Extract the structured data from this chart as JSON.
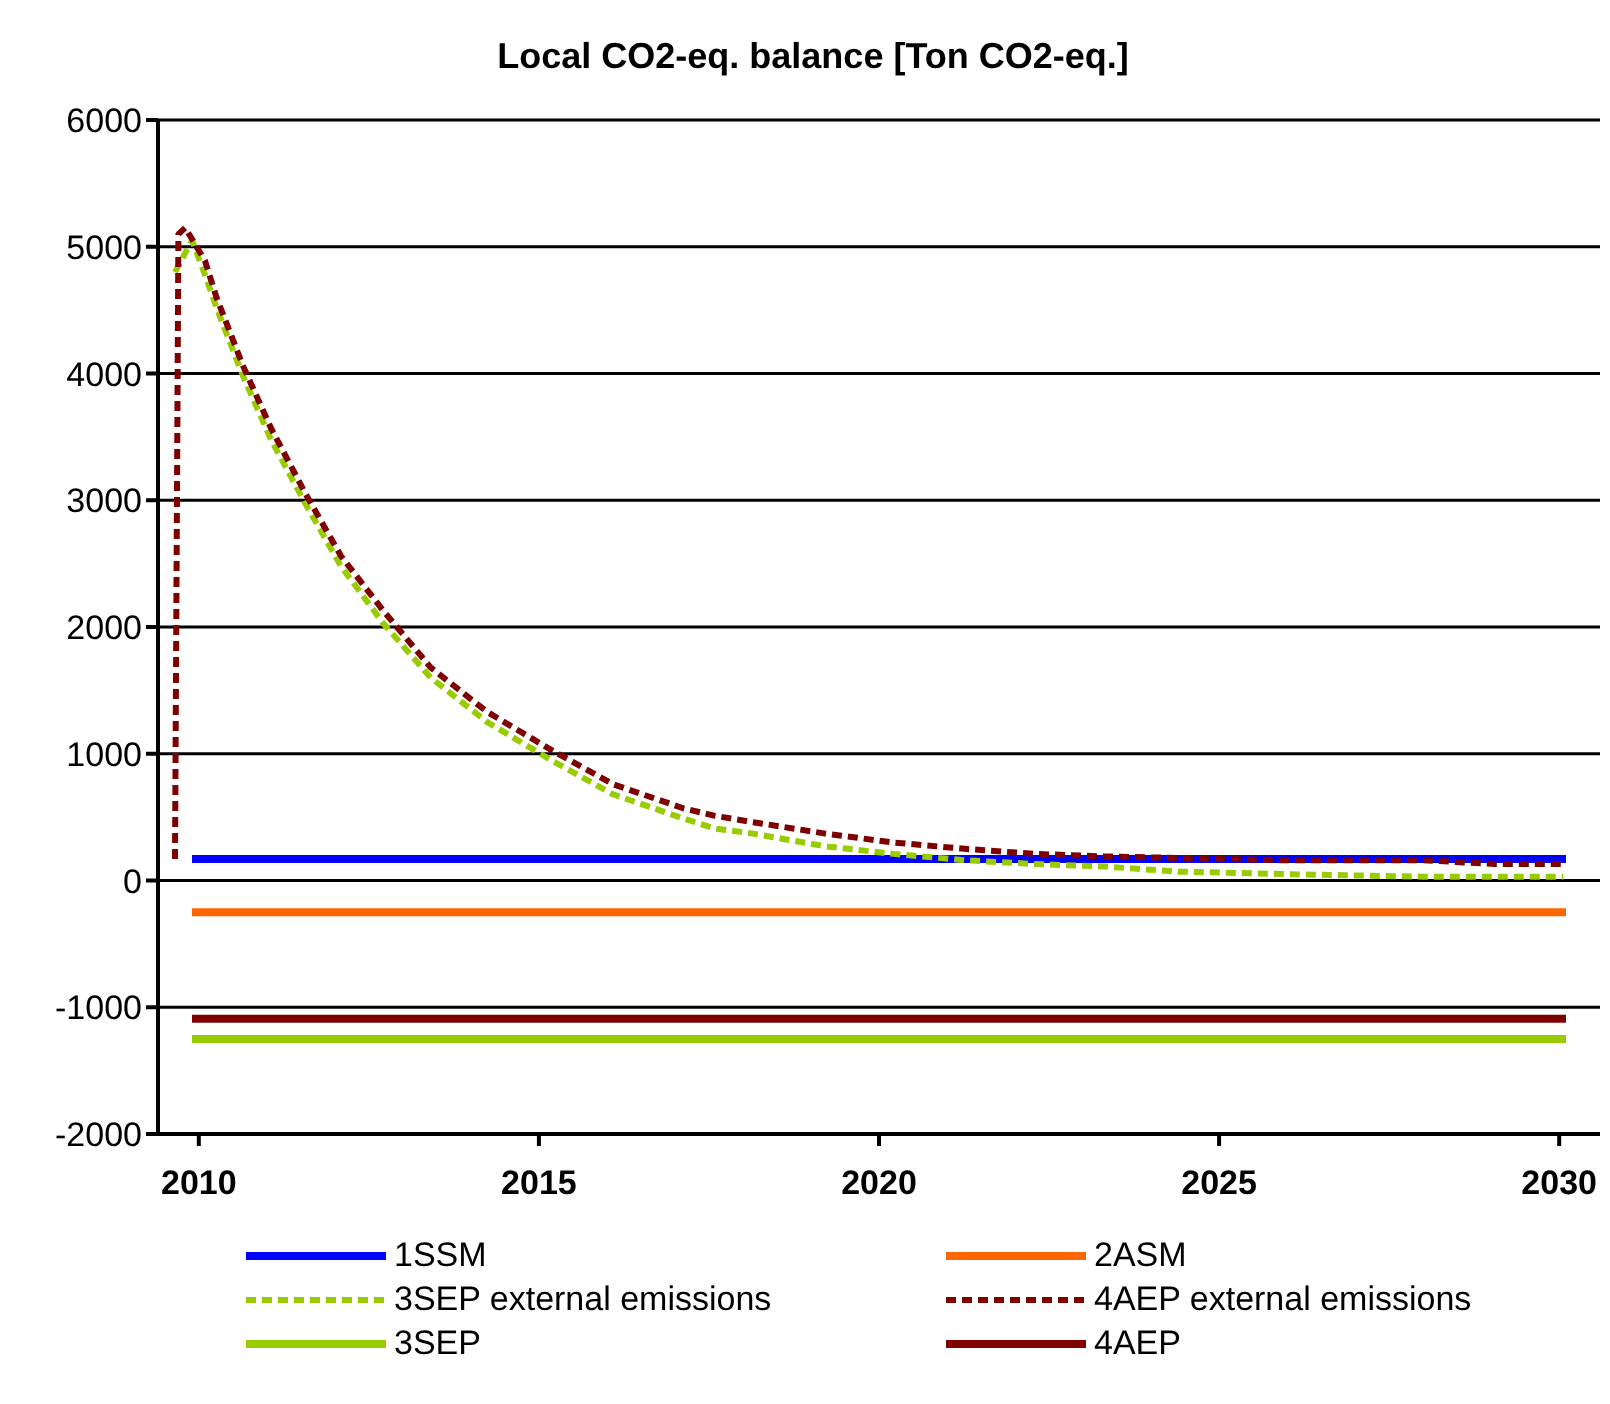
{
  "chart_data": {
    "type": "line",
    "title": "Local CO2-eq. balance [Ton CO2-eq.]",
    "xlim": [
      2009.4,
      2030.6
    ],
    "xticks": [
      2010,
      2015,
      2020,
      2025,
      2030
    ],
    "ylim": [
      -2000,
      6000
    ],
    "yticks": [
      -2000,
      -1000,
      0,
      1000,
      2000,
      3000,
      4000,
      5000,
      6000
    ],
    "grid": "y",
    "legend": "bottom",
    "marker": "none",
    "series": [
      {
        "name": "1SSM",
        "color": "#0000ff",
        "line_style": "solid",
        "x": [
          2009.9,
          2030.1
        ],
        "values": [
          170,
          170
        ]
      },
      {
        "name": "2ASM",
        "color": "#ff6600",
        "line_style": "solid",
        "x": [
          2009.9,
          2030.1
        ],
        "values": [
          -250,
          -250
        ]
      },
      {
        "name": "3SEP external emissions",
        "color": "#99cc00",
        "line_style": "dashed",
        "x": [
          2009.65,
          2009.9,
          2010.09,
          2010.26,
          2010.65,
          2011.06,
          2011.56,
          2012.09,
          2012.71,
          2013.41,
          2014.24,
          2015.18,
          2016.09,
          2017.12,
          2017.59,
          2018.15,
          2019.21,
          2020.21,
          2021.26,
          2022.29,
          2023.32,
          2024.4,
          2026.0,
          2028.0,
          2030.06
        ],
        "values": [
          4800,
          5050,
          4780,
          4520,
          3980,
          3480,
          2980,
          2480,
          2030,
          1600,
          1250,
          950,
          680,
          490,
          410,
          370,
          270,
          210,
          160,
          130,
          110,
          70,
          50,
          30,
          30
        ]
      },
      {
        "name": "4AEP external emissions",
        "color": "#800000",
        "line_style": "dashed",
        "x": [
          2009.65,
          2009.7,
          2009.8,
          2010.09,
          2010.26,
          2010.65,
          2011.06,
          2011.56,
          2012.09,
          2012.71,
          2013.41,
          2014.24,
          2015.18,
          2016.09,
          2017.12,
          2017.59,
          2018.15,
          2019.21,
          2020.21,
          2021.26,
          2022.29,
          2023.32,
          2025.94,
          2028.0,
          2029.06,
          2030.06
        ],
        "values": [
          170,
          5100,
          5150,
          4890,
          4600,
          4060,
          3570,
          3060,
          2560,
          2130,
          1680,
          1330,
          1030,
          760,
          570,
          510,
          460,
          370,
          300,
          250,
          210,
          190,
          160,
          160,
          130,
          130
        ]
      },
      {
        "name": "3SEP",
        "color": "#99cc00",
        "line_style": "solid",
        "x": [
          2009.9,
          2030.1
        ],
        "values": [
          -1250,
          -1250
        ]
      },
      {
        "name": "4AEP",
        "color": "#800000",
        "line_style": "solid",
        "x": [
          2009.9,
          2030.1
        ],
        "values": [
          -1090,
          -1090
        ]
      }
    ]
  }
}
